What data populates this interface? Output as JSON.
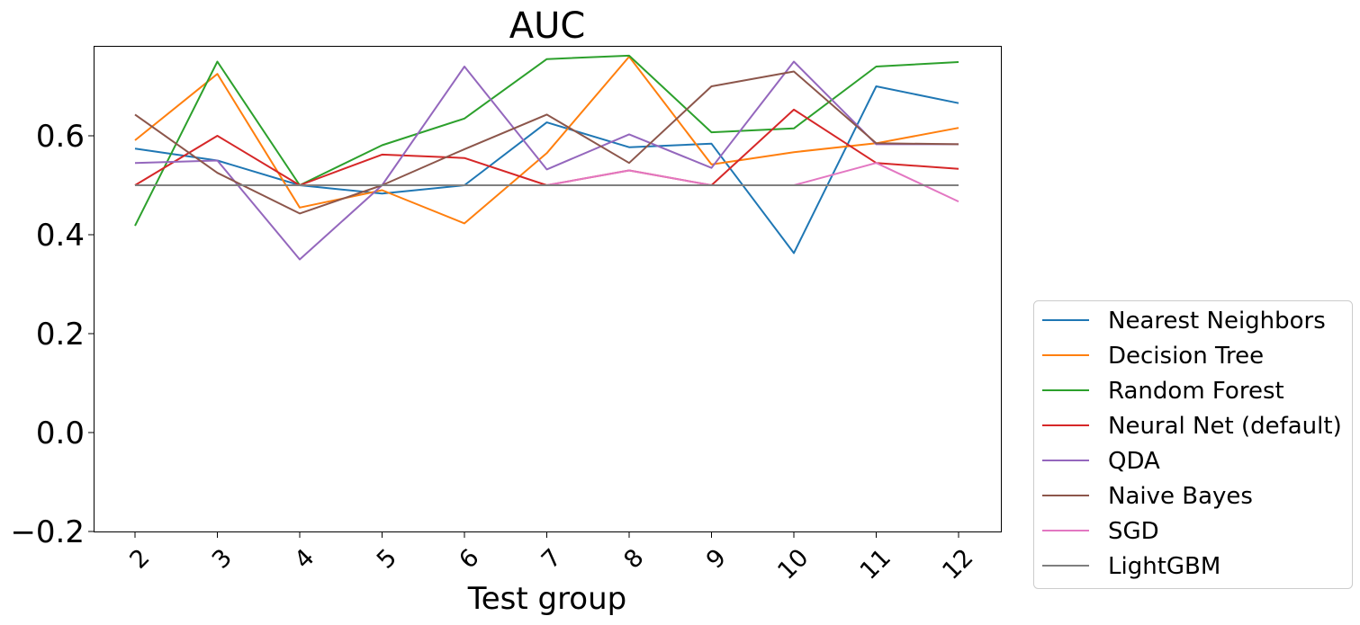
{
  "chart_data": {
    "type": "line",
    "title": "AUC",
    "xlabel": "Test group",
    "ylabel": "",
    "categories": [
      "2",
      "3",
      "4",
      "5",
      "6",
      "7",
      "8",
      "9",
      "10",
      "11",
      "12"
    ],
    "yticks": [
      -0.2,
      0.0,
      0.2,
      0.4,
      0.6
    ],
    "ytick_labels": [
      "−0.2",
      "0.0",
      "0.2",
      "0.4",
      "0.6"
    ],
    "ylim": [
      -0.2,
      0.78
    ],
    "grid": false,
    "legend_position": "outside-right-bottom",
    "series": [
      {
        "name": "Nearest Neighbors",
        "color": "#1f77b4",
        "values": [
          0.574,
          0.55,
          0.5,
          0.483,
          0.5,
          0.627,
          0.577,
          0.584,
          0.363,
          0.7,
          0.666
        ]
      },
      {
        "name": "Decision Tree",
        "color": "#ff7f0e",
        "values": [
          0.591,
          0.725,
          0.455,
          0.49,
          0.423,
          0.565,
          0.76,
          0.542,
          0.567,
          0.585,
          0.616
        ]
      },
      {
        "name": "Random Forest",
        "color": "#2ca02c",
        "values": [
          0.418,
          0.75,
          0.5,
          0.581,
          0.635,
          0.755,
          0.762,
          0.607,
          0.615,
          0.74,
          0.749
        ]
      },
      {
        "name": "Neural Net (default)",
        "color": "#d62728",
        "values": [
          0.5,
          0.6,
          0.5,
          0.562,
          0.555,
          0.5,
          0.53,
          0.5,
          0.653,
          0.545,
          0.533
        ]
      },
      {
        "name": "QDA",
        "color": "#9467bd",
        "values": [
          0.545,
          0.55,
          0.35,
          0.5,
          0.74,
          0.532,
          0.603,
          0.535,
          0.75,
          0.583,
          0.583
        ]
      },
      {
        "name": "Naive Bayes",
        "color": "#8c564b",
        "values": [
          0.643,
          0.525,
          0.443,
          0.5,
          0.573,
          0.643,
          0.545,
          0.7,
          0.73,
          0.585,
          0.583
        ]
      },
      {
        "name": "SGD",
        "color": "#e377c2",
        "values": [
          0.5,
          0.5,
          0.5,
          0.5,
          0.5,
          0.5,
          0.53,
          0.5,
          0.5,
          0.545,
          0.467
        ]
      },
      {
        "name": "LightGBM",
        "color": "#7f7f7f",
        "values": [
          0.5,
          0.5,
          0.5,
          0.5,
          0.5,
          0.5,
          0.5,
          0.5,
          0.5,
          0.5,
          0.5
        ]
      }
    ]
  }
}
